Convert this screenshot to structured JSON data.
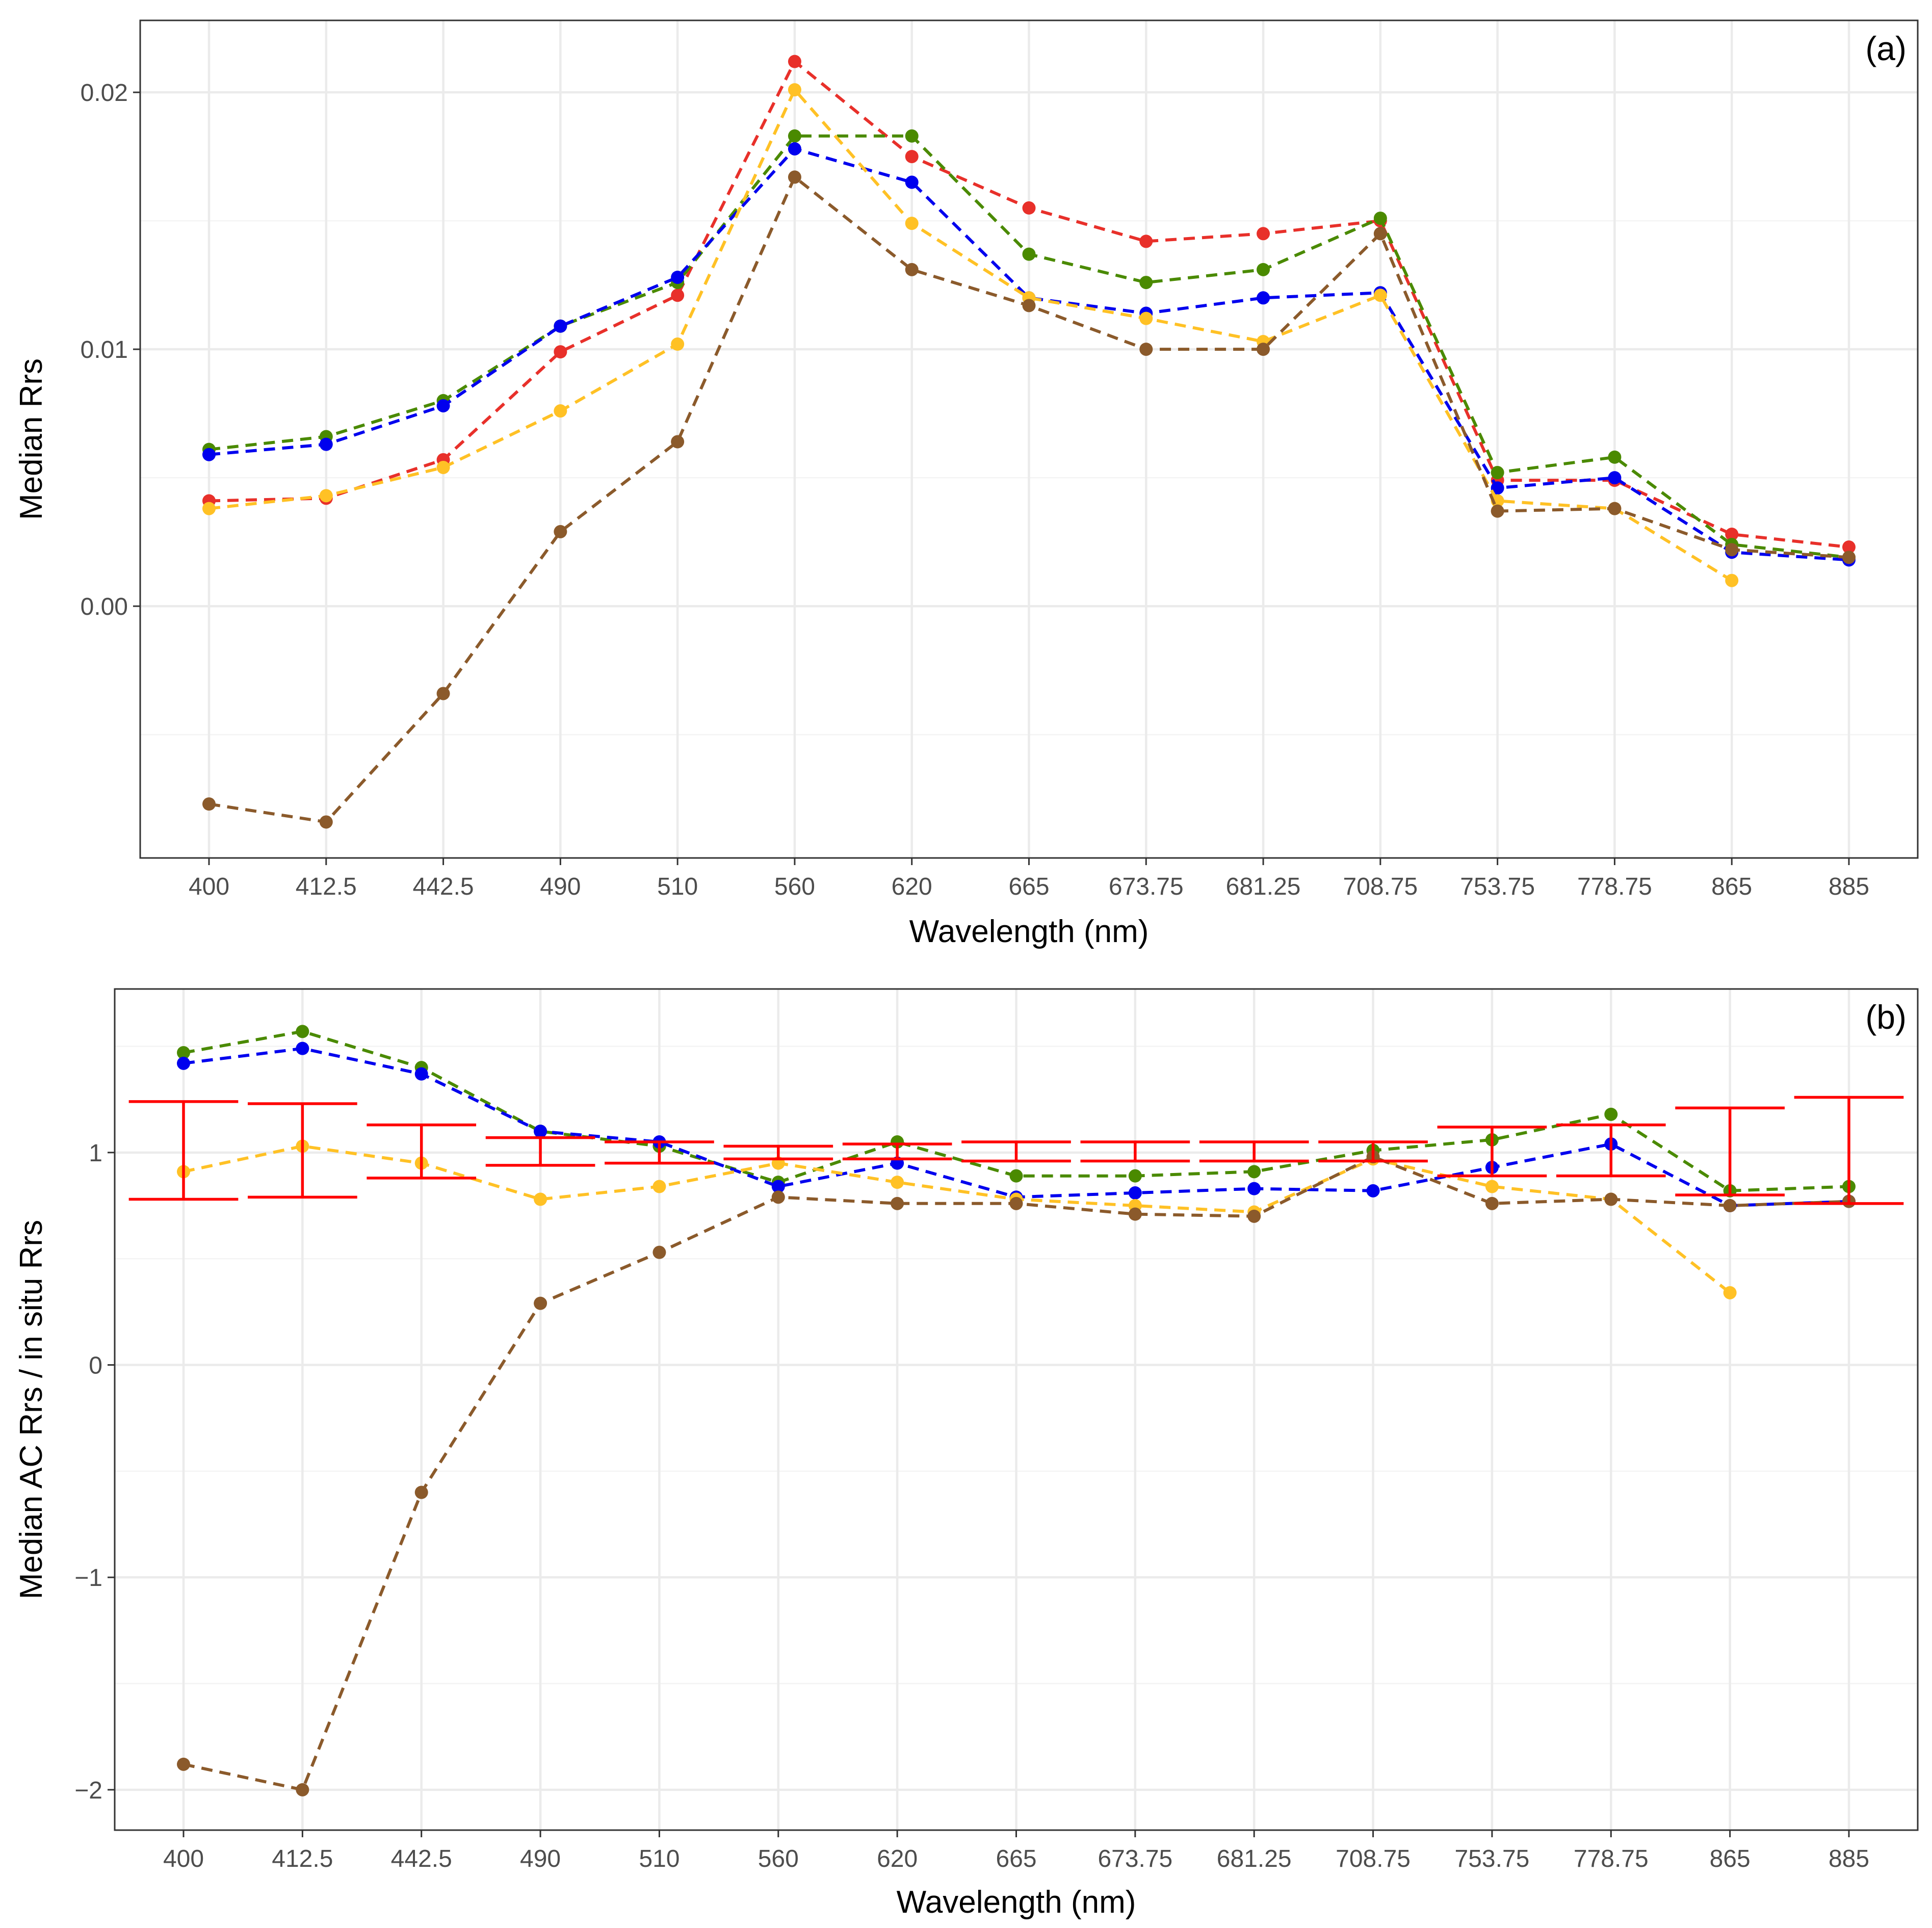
{
  "colors": {
    "red": "#E8302A",
    "green": "#4A8A00",
    "blue": "#0000EE",
    "yellow": "#FFC125",
    "brown": "#8B5A2B",
    "errorbar": "#FF0000",
    "grid_major": "#EBEBEB",
    "grid_minor": "#F4F4F4"
  },
  "chart_data": [
    {
      "type": "line",
      "panel_label": "(a)",
      "xlabel": "Wavelength (nm)",
      "ylabel": "Median Rrs",
      "categories": [
        "400",
        "412.5",
        "442.5",
        "490",
        "510",
        "560",
        "620",
        "665",
        "673.75",
        "681.25",
        "708.75",
        "753.75",
        "778.75",
        "865",
        "885"
      ],
      "ylim": [
        -0.0098,
        0.0228
      ],
      "yticks": [
        0.0,
        0.01,
        0.02
      ],
      "ytick_labels": [
        "0.00",
        "0.01",
        "0.02"
      ],
      "line_style": "dashed",
      "series": [
        {
          "name": "red",
          "color": "#E8302A",
          "values": [
            0.0041,
            0.0042,
            0.0057,
            0.0099,
            0.0121,
            0.0212,
            0.0175,
            0.0155,
            0.0142,
            0.0145,
            0.015,
            0.0049,
            0.0049,
            0.0028,
            0.0023
          ]
        },
        {
          "name": "green",
          "color": "#4A8A00",
          "values": [
            0.0061,
            0.0066,
            0.008,
            0.0109,
            0.0126,
            0.0183,
            0.0183,
            0.0137,
            0.0126,
            0.0131,
            0.0151,
            0.0052,
            0.0058,
            0.0024,
            0.0019
          ]
        },
        {
          "name": "blue",
          "color": "#0000EE",
          "values": [
            0.0059,
            0.0063,
            0.0078,
            0.0109,
            0.0128,
            0.0178,
            0.0165,
            0.012,
            0.0114,
            0.012,
            0.0122,
            0.0046,
            0.005,
            0.0021,
            0.0018
          ]
        },
        {
          "name": "yellow",
          "color": "#FFC125",
          "values": [
            0.0038,
            0.0043,
            0.0054,
            0.0076,
            0.0102,
            0.0201,
            0.0149,
            0.012,
            0.0112,
            0.0103,
            0.0121,
            0.0041,
            0.0038,
            0.001,
            null
          ]
        },
        {
          "name": "brown",
          "color": "#8B5A2B",
          "values": [
            -0.0077,
            -0.0084,
            -0.0034,
            0.0029,
            0.0064,
            0.0167,
            0.0131,
            0.0117,
            0.01,
            0.01,
            0.0145,
            0.0037,
            0.0038,
            0.0022,
            0.0019
          ]
        }
      ]
    },
    {
      "type": "line",
      "panel_label": "(b)",
      "xlabel": "Wavelength (nm)",
      "ylabel": "Median AC Rrs / in situ Rrs",
      "categories": [
        "400",
        "412.5",
        "442.5",
        "490",
        "510",
        "560",
        "620",
        "665",
        "673.75",
        "681.25",
        "708.75",
        "753.75",
        "778.75",
        "865",
        "885"
      ],
      "ylim": [
        -2.19,
        1.77
      ],
      "yticks": [
        -2,
        -1,
        0,
        1
      ],
      "ytick_labels": [
        "−2",
        "−1",
        "0",
        "1"
      ],
      "line_style": "dashed",
      "series": [
        {
          "name": "green",
          "color": "#4A8A00",
          "values": [
            1.47,
            1.57,
            1.4,
            1.1,
            1.03,
            0.86,
            1.05,
            0.89,
            0.89,
            0.91,
            1.01,
            1.06,
            1.18,
            0.82,
            0.84
          ]
        },
        {
          "name": "blue",
          "color": "#0000EE",
          "values": [
            1.42,
            1.49,
            1.37,
            1.1,
            1.05,
            0.84,
            0.95,
            0.79,
            0.81,
            0.83,
            0.82,
            0.93,
            1.04,
            0.75,
            0.77
          ]
        },
        {
          "name": "yellow",
          "color": "#FFC125",
          "values": [
            0.91,
            1.03,
            0.95,
            0.78,
            0.84,
            0.95,
            0.86,
            0.78,
            0.75,
            0.72,
            0.97,
            0.84,
            0.78,
            0.34,
            null
          ]
        },
        {
          "name": "brown",
          "color": "#8B5A2B",
          "values": [
            -1.88,
            -2.0,
            -0.6,
            0.29,
            0.53,
            0.79,
            0.76,
            0.76,
            0.71,
            0.7,
            0.98,
            0.76,
            0.78,
            0.75,
            0.77
          ]
        }
      ],
      "error_bars": {
        "color": "#FF0000",
        "low": [
          0.78,
          0.79,
          0.88,
          0.94,
          0.95,
          0.97,
          0.97,
          0.96,
          0.96,
          0.96,
          0.96,
          0.89,
          0.89,
          0.8,
          0.76
        ],
        "high": [
          1.24,
          1.23,
          1.13,
          1.07,
          1.05,
          1.03,
          1.04,
          1.05,
          1.05,
          1.05,
          1.05,
          1.12,
          1.13,
          1.21,
          1.26
        ]
      }
    }
  ]
}
